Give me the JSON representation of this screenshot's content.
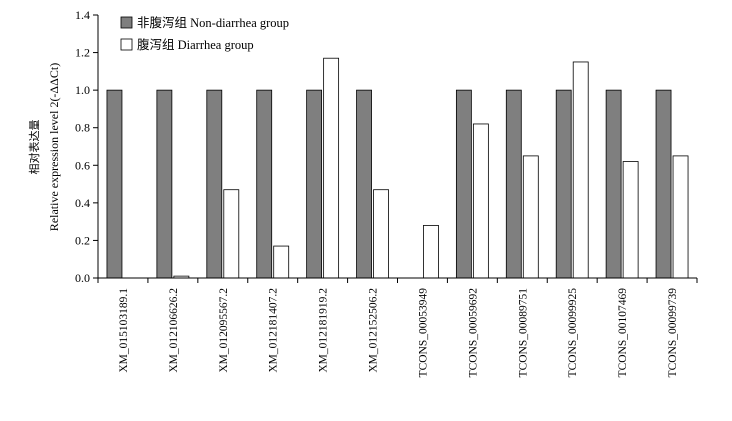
{
  "chart_data": {
    "type": "bar",
    "ylabel": "Relative expression level 2(-ΔΔCt)",
    "ylabel_cn": "相对表达量",
    "ylim": [
      0,
      1.4
    ],
    "yticks": [
      "0.0",
      "0.2",
      "0.4",
      "0.6",
      "0.8",
      "1.0",
      "1.2",
      "1.4"
    ],
    "legend_position": "top-left",
    "grid": false,
    "categories": [
      "XM_015103189.1",
      "XM_012106626.2",
      "XM_012095567.2",
      "XM_012181407.2",
      "XM_012181919.2",
      "XM_012152506.2",
      "TCONS_00053949",
      "TCONS_00059692",
      "TCONS_00089751",
      "TCONS_00099925",
      "TCONS_00107469",
      "TCONS_00099739"
    ],
    "series": [
      {
        "name": "非腹泻组 Non-diarrhea group",
        "color": "#7f7f7f",
        "values": [
          1.0,
          1.0,
          1.0,
          1.0,
          1.0,
          1.0,
          0.0,
          1.0,
          1.0,
          1.0,
          1.0,
          1.0
        ]
      },
      {
        "name": "腹泻组 Diarrhea group",
        "color": "#ffffff",
        "values": [
          0.0,
          0.01,
          0.47,
          0.17,
          1.17,
          0.47,
          0.28,
          0.82,
          0.65,
          1.15,
          0.62,
          0.65
        ]
      }
    ]
  }
}
